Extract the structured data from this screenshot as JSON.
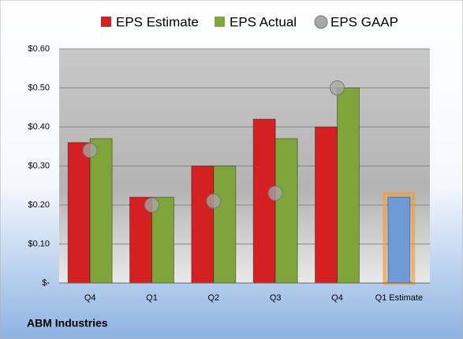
{
  "chart_data": {
    "type": "bar",
    "title": "ABM Industries",
    "categories": [
      "Q4",
      "Q1",
      "Q2",
      "Q3",
      "Q4",
      "Q1 Estimate"
    ],
    "series": [
      {
        "name": "EPS Estimate",
        "color": "#d42020",
        "values": [
          0.36,
          0.22,
          0.3,
          0.42,
          0.4,
          null
        ]
      },
      {
        "name": "EPS Actual",
        "color": "#7ea43a",
        "values": [
          0.37,
          0.22,
          0.3,
          0.37,
          0.5,
          null
        ]
      },
      {
        "name": "EPS GAAP",
        "color": "#a8a8a8",
        "marker": "circle",
        "values": [
          0.34,
          0.2,
          0.21,
          0.23,
          0.5,
          null
        ]
      },
      {
        "color": "#6f9bd6",
        "values": [
          null,
          null,
          null,
          null,
          null,
          0.22
        ]
      }
    ],
    "ylim": [
      0,
      0.6
    ],
    "yticks": [
      {
        "value": 0,
        "label": "$-"
      },
      {
        "value": 0.1,
        "label": "$0.10"
      },
      {
        "value": 0.2,
        "label": "$0.20"
      },
      {
        "value": 0.3,
        "label": "$0.30"
      },
      {
        "value": 0.4,
        "label": "$0.40"
      },
      {
        "value": 0.5,
        "label": "$0.50"
      },
      {
        "value": 0.6,
        "label": "$0.60"
      }
    ],
    "grid": true
  }
}
